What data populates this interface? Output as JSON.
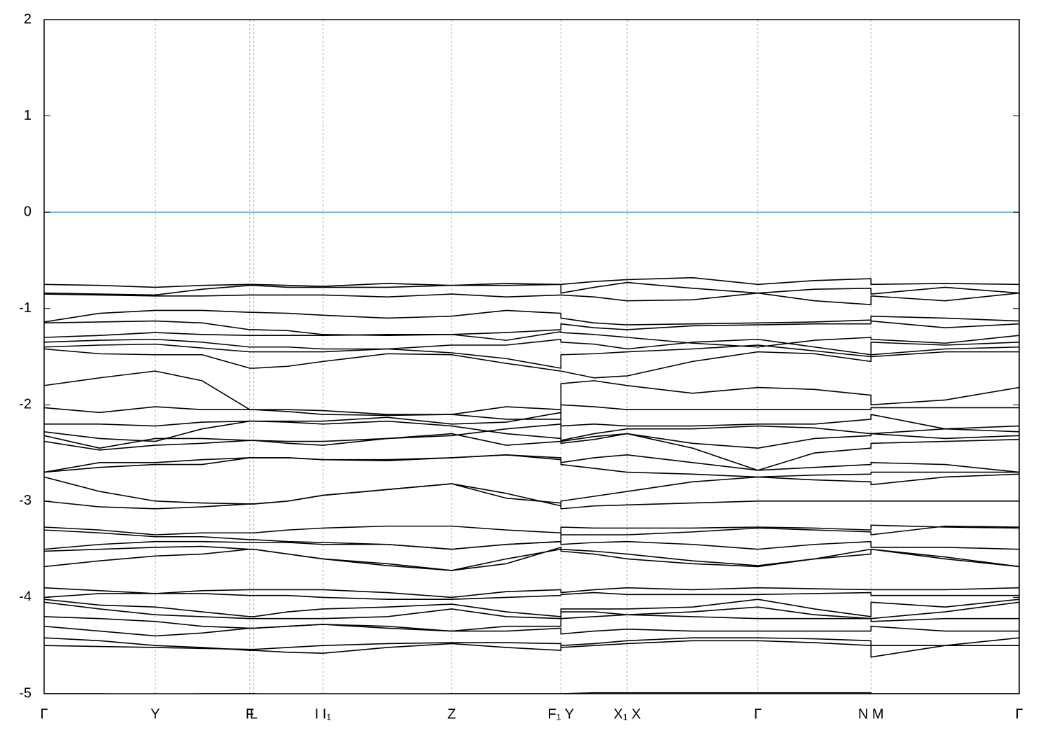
{
  "chart_data": {
    "type": "line",
    "color": "#000000",
    "xlim": [
      0,
      1
    ],
    "ylim": [
      -5,
      2
    ],
    "yticks": [
      -5,
      -4,
      -3,
      -2,
      -1,
      0,
      1,
      2
    ],
    "xticks": [
      {
        "value": 0,
        "label": "Γ"
      },
      {
        "value": 0.114,
        "label": "Y"
      },
      {
        "value": 0.211,
        "label": "F"
      },
      {
        "value": 0.215,
        "label": "L"
      },
      {
        "value": 0.286,
        "label": "I  I₁"
      },
      {
        "value": 0.418,
        "label": "Z"
      },
      {
        "value": 0.53,
        "label": "F₁ Y"
      },
      {
        "value": 0.598,
        "label": "X₁ X"
      },
      {
        "value": 0.732,
        "label": "Γ"
      },
      {
        "value": 0.848,
        "label": "N M"
      },
      {
        "value": 1,
        "label": "Γ"
      }
    ],
    "grid": "x",
    "reference_line": {
      "y": 0,
      "color": "#5aaec8"
    },
    "x": [
      0,
      0.057,
      0.114,
      0.162,
      0.211,
      0.215,
      0.25,
      0.286,
      0.352,
      0.418,
      0.474,
      0.53,
      0.53,
      0.564,
      0.598,
      0.665,
      0.732,
      0.79,
      0.848,
      0.848,
      0.924,
      1.0
    ],
    "series": [
      {
        "values": [
          -0.75,
          -0.76,
          -0.78,
          -0.76,
          -0.75,
          -0.75,
          -0.76,
          -0.77,
          -0.74,
          -0.76,
          -0.74,
          -0.75,
          -0.75,
          -0.72,
          -0.7,
          -0.68,
          -0.75,
          -0.71,
          -0.69,
          -0.75,
          -0.74,
          -0.75
        ]
      },
      {
        "values": [
          -0.84,
          -0.85,
          -0.86,
          -0.8,
          -0.76,
          -0.76,
          -0.78,
          -0.78,
          -0.78,
          -0.76,
          -0.76,
          -0.75,
          -0.84,
          -0.78,
          -0.73,
          -0.79,
          -0.84,
          -0.8,
          -0.79,
          -0.85,
          -0.78,
          -0.84
        ]
      },
      {
        "values": [
          -0.85,
          -0.86,
          -0.87,
          -0.87,
          -0.86,
          -0.86,
          -0.86,
          -0.86,
          -0.88,
          -0.85,
          -0.88,
          -0.86,
          -0.86,
          -0.88,
          -0.92,
          -0.91,
          -0.84,
          -0.92,
          -0.96,
          -0.87,
          -0.92,
          -0.84
        ]
      },
      {
        "values": [
          -1.14,
          -1.05,
          -1.02,
          -1.02,
          -1.04,
          -1.04,
          -1.05,
          -1.07,
          -1.1,
          -1.08,
          -1.02,
          -1.05,
          -1.1,
          -1.15,
          -1.17,
          -1.16,
          -1.15,
          -1.14,
          -1.12,
          -1.08,
          -1.1,
          -1.13
        ]
      },
      {
        "values": [
          -1.15,
          -1.14,
          -1.13,
          -1.15,
          -1.22,
          -1.22,
          -1.23,
          -1.27,
          -1.28,
          -1.27,
          -1.25,
          -1.22,
          -1.16,
          -1.2,
          -1.22,
          -1.18,
          -1.17,
          -1.16,
          -1.16,
          -1.13,
          -1.2,
          -1.16
        ]
      },
      {
        "values": [
          -1.3,
          -1.28,
          -1.25,
          -1.27,
          -1.28,
          -1.28,
          -1.28,
          -1.28,
          -1.27,
          -1.27,
          -1.33,
          -1.24,
          -1.25,
          -1.27,
          -1.3,
          -1.36,
          -1.4,
          -1.33,
          -1.3,
          -1.32,
          -1.36,
          -1.28
        ]
      },
      {
        "values": [
          -1.35,
          -1.33,
          -1.32,
          -1.35,
          -1.4,
          -1.4,
          -1.4,
          -1.42,
          -1.42,
          -1.38,
          -1.38,
          -1.32,
          -1.35,
          -1.37,
          -1.42,
          -1.35,
          -1.32,
          -1.4,
          -1.48,
          -1.35,
          -1.38,
          -1.35
        ]
      },
      {
        "values": [
          -1.4,
          -1.38,
          -1.37,
          -1.41,
          -1.45,
          -1.45,
          -1.45,
          -1.45,
          -1.42,
          -1.46,
          -1.52,
          -1.62,
          -1.48,
          -1.47,
          -1.45,
          -1.42,
          -1.38,
          -1.44,
          -1.5,
          -1.48,
          -1.42,
          -1.4
        ]
      },
      {
        "values": [
          -1.42,
          -1.47,
          -1.48,
          -1.48,
          -1.62,
          -1.62,
          -1.6,
          -1.55,
          -1.47,
          -1.48,
          -1.57,
          -1.65,
          -1.65,
          -1.72,
          -1.7,
          -1.55,
          -1.45,
          -1.47,
          -1.55,
          -1.5,
          -1.45,
          -1.45
        ]
      },
      {
        "values": [
          -1.8,
          -1.72,
          -1.65,
          -1.75,
          -2.05,
          -2.05,
          -2.05,
          -2.06,
          -2.1,
          -2.1,
          -2.02,
          -2.05,
          -1.78,
          -1.75,
          -1.8,
          -1.88,
          -1.82,
          -1.84,
          -1.9,
          -2.0,
          -1.95,
          -1.82
        ]
      },
      {
        "values": [
          -2.03,
          -2.08,
          -2.02,
          -2.05,
          -2.05,
          -2.05,
          -2.07,
          -2.1,
          -2.11,
          -2.1,
          -2.15,
          -2.15,
          -2.0,
          -2.02,
          -2.05,
          -2.05,
          -2.05,
          -2.05,
          -2.05,
          -2.03,
          -2.03,
          -2.03
        ]
      },
      {
        "values": [
          -2.2,
          -2.2,
          -2.22,
          -2.18,
          -2.17,
          -2.17,
          -2.17,
          -2.17,
          -2.13,
          -2.2,
          -2.18,
          -2.08,
          -2.22,
          -2.2,
          -2.22,
          -2.22,
          -2.2,
          -2.2,
          -2.15,
          -2.1,
          -2.25,
          -2.22
        ]
      },
      {
        "values": [
          -2.28,
          -2.35,
          -2.38,
          -2.25,
          -2.17,
          -2.17,
          -2.18,
          -2.2,
          -2.17,
          -2.22,
          -2.3,
          -2.35,
          -2.37,
          -2.3,
          -2.25,
          -2.25,
          -2.22,
          -2.24,
          -2.3,
          -2.3,
          -2.25,
          -2.28
        ]
      },
      {
        "values": [
          -2.32,
          -2.45,
          -2.35,
          -2.35,
          -2.37,
          -2.37,
          -2.4,
          -2.42,
          -2.35,
          -2.3,
          -2.42,
          -2.38,
          -2.38,
          -2.33,
          -2.3,
          -2.4,
          -2.45,
          -2.35,
          -2.32,
          -2.3,
          -2.35,
          -2.32
        ]
      },
      {
        "values": [
          -2.38,
          -2.47,
          -2.42,
          -2.4,
          -2.37,
          -2.37,
          -2.38,
          -2.38,
          -2.35,
          -2.32,
          -2.25,
          -2.2,
          -2.4,
          -2.36,
          -2.3,
          -2.45,
          -2.68,
          -2.5,
          -2.45,
          -2.4,
          -2.38,
          -2.36
        ]
      },
      {
        "values": [
          -2.7,
          -2.6,
          -2.6,
          -2.57,
          -2.55,
          -2.55,
          -2.55,
          -2.57,
          -2.57,
          -2.55,
          -2.52,
          -2.55,
          -2.6,
          -2.55,
          -2.52,
          -2.6,
          -2.68,
          -2.65,
          -2.62,
          -2.6,
          -2.62,
          -2.7
        ]
      },
      {
        "values": [
          -2.7,
          -2.65,
          -2.62,
          -2.62,
          -2.55,
          -2.55,
          -2.55,
          -2.57,
          -2.58,
          -2.55,
          -2.52,
          -2.57,
          -2.62,
          -2.66,
          -2.7,
          -2.72,
          -2.75,
          -2.78,
          -2.8,
          -2.83,
          -2.75,
          -2.72
        ]
      },
      {
        "values": [
          -2.75,
          -2.9,
          -3.0,
          -3.02,
          -3.03,
          -3.03,
          -3.0,
          -2.94,
          -2.88,
          -2.82,
          -2.92,
          -3.05,
          -3.0,
          -2.95,
          -2.9,
          -2.8,
          -2.75,
          -2.73,
          -2.72,
          -2.7,
          -2.7,
          -2.7
        ]
      },
      {
        "values": [
          -3.0,
          -3.06,
          -3.08,
          -3.06,
          -3.03,
          -3.03,
          -3.0,
          -2.94,
          -2.88,
          -2.82,
          -2.97,
          -3.02,
          -3.08,
          -3.05,
          -3.04,
          -3.02,
          -3.0,
          -3.0,
          -3.0,
          -3.0,
          -3.0,
          -3.0
        ]
      },
      {
        "values": [
          -3.27,
          -3.3,
          -3.35,
          -3.33,
          -3.33,
          -3.33,
          -3.3,
          -3.28,
          -3.26,
          -3.26,
          -3.3,
          -3.33,
          -3.35,
          -3.35,
          -3.35,
          -3.32,
          -3.28,
          -3.3,
          -3.32,
          -3.35,
          -3.26,
          -3.27
        ]
      },
      {
        "values": [
          -3.3,
          -3.33,
          -3.37,
          -3.37,
          -3.4,
          -3.4,
          -3.42,
          -3.43,
          -3.45,
          -3.5,
          -3.45,
          -3.42,
          -3.27,
          -3.28,
          -3.28,
          -3.28,
          -3.27,
          -3.28,
          -3.3,
          -3.25,
          -3.27,
          -3.28
        ]
      },
      {
        "values": [
          -3.5,
          -3.45,
          -3.42,
          -3.42,
          -3.43,
          -3.43,
          -3.43,
          -3.45,
          -3.45,
          -3.5,
          -3.45,
          -3.42,
          -3.45,
          -3.43,
          -3.42,
          -3.45,
          -3.5,
          -3.45,
          -3.42,
          -3.48,
          -3.48,
          -3.5
        ]
      },
      {
        "values": [
          -3.52,
          -3.5,
          -3.48,
          -3.47,
          -3.5,
          -3.5,
          -3.55,
          -3.6,
          -3.65,
          -3.72,
          -3.6,
          -3.5,
          -3.5,
          -3.52,
          -3.55,
          -3.62,
          -3.67,
          -3.6,
          -3.55,
          -3.5,
          -3.6,
          -3.68
        ]
      },
      {
        "values": [
          -3.68,
          -3.62,
          -3.57,
          -3.55,
          -3.5,
          -3.5,
          -3.55,
          -3.6,
          -3.67,
          -3.72,
          -3.65,
          -3.48,
          -3.52,
          -3.55,
          -3.6,
          -3.65,
          -3.68,
          -3.6,
          -3.5,
          -3.5,
          -3.58,
          -3.68
        ]
      },
      {
        "values": [
          -3.9,
          -3.93,
          -3.96,
          -3.93,
          -3.92,
          -3.92,
          -3.92,
          -3.92,
          -3.95,
          -4.0,
          -3.94,
          -3.92,
          -3.95,
          -3.92,
          -3.9,
          -3.92,
          -3.9,
          -3.91,
          -3.92,
          -3.92,
          -3.92,
          -3.9
        ]
      },
      {
        "values": [
          -4.0,
          -3.96,
          -3.96,
          -3.96,
          -3.98,
          -3.98,
          -3.98,
          -4.0,
          -4.02,
          -4.02,
          -4.0,
          -3.98,
          -3.97,
          -3.95,
          -3.97,
          -3.97,
          -3.97,
          -3.96,
          -3.95,
          -3.98,
          -3.98,
          -3.98
        ]
      },
      {
        "values": [
          -4.02,
          -4.08,
          -4.1,
          -4.15,
          -4.2,
          -4.2,
          -4.15,
          -4.12,
          -4.1,
          -4.07,
          -4.15,
          -4.2,
          -4.12,
          -4.12,
          -4.12,
          -4.1,
          -4.02,
          -4.12,
          -4.2,
          -4.05,
          -4.1,
          -4.02
        ]
      },
      {
        "values": [
          -4.05,
          -4.12,
          -4.18,
          -4.2,
          -4.22,
          -4.22,
          -4.22,
          -4.22,
          -4.2,
          -4.12,
          -4.2,
          -4.22,
          -4.15,
          -4.15,
          -4.18,
          -4.2,
          -4.22,
          -4.22,
          -4.22,
          -4.22,
          -4.15,
          -4.05
        ]
      },
      {
        "values": [
          -4.2,
          -4.22,
          -4.25,
          -4.3,
          -4.32,
          -4.32,
          -4.3,
          -4.28,
          -4.3,
          -4.35,
          -4.3,
          -4.3,
          -4.22,
          -4.2,
          -4.18,
          -4.15,
          -4.1,
          -4.18,
          -4.22,
          -4.25,
          -4.22,
          -4.22
        ]
      },
      {
        "values": [
          -4.3,
          -4.35,
          -4.4,
          -4.37,
          -4.32,
          -4.32,
          -4.3,
          -4.28,
          -4.32,
          -4.35,
          -4.35,
          -4.32,
          -4.38,
          -4.35,
          -4.33,
          -4.35,
          -4.35,
          -4.35,
          -4.35,
          -4.3,
          -4.35,
          -4.35
        ]
      },
      {
        "values": [
          -4.42,
          -4.45,
          -4.5,
          -4.52,
          -4.55,
          -4.55,
          -4.57,
          -4.58,
          -4.52,
          -4.48,
          -4.52,
          -4.55,
          -4.5,
          -4.48,
          -4.45,
          -4.42,
          -4.42,
          -4.43,
          -4.45,
          -4.62,
          -4.5,
          -4.42
        ]
      },
      {
        "values": [
          -4.5,
          -4.51,
          -4.52,
          -4.53,
          -4.54,
          -4.54,
          -4.52,
          -4.5,
          -4.48,
          -4.47,
          -4.47,
          -4.48,
          -4.52,
          -4.5,
          -4.48,
          -4.45,
          -4.45,
          -4.47,
          -4.5,
          -4.5,
          -4.5,
          -4.5
        ]
      },
      {
        "values": [
          -5.0,
          -5.0,
          -5.01,
          -5.0,
          -5.0,
          -5.0,
          -5.01,
          -5.02,
          -5.01,
          -5.0,
          -5.0,
          -5.0,
          -5.0,
          -4.99,
          -4.99,
          -4.99,
          -4.99,
          -4.99,
          -4.99,
          -5.0,
          -5.0,
          -5.0
        ]
      }
    ]
  }
}
